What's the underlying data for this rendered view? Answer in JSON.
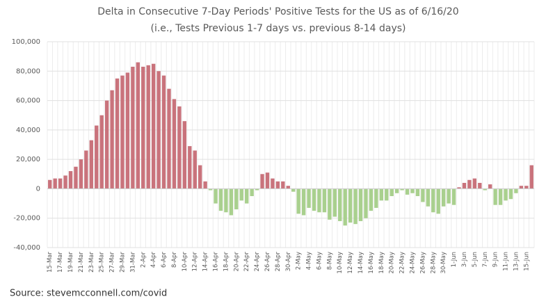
{
  "chart_data": {
    "type": "bar",
    "title": "Delta in Consecutive 7-Day Periods' Positive Tests for the US as of 6/16/20",
    "subtitle": "(i.e., Tests Previous 1-7 days vs. previous 8-14 days)",
    "source": "Source: stevemcconnell.com/covid",
    "categories": [
      "15-Mar",
      null,
      "17-Mar",
      null,
      "19-Mar",
      null,
      "21-Mar",
      null,
      "23-Mar",
      null,
      "25-Mar",
      null,
      "27-Mar",
      null,
      "29-Mar",
      null,
      "31-Mar",
      null,
      "2-Apr",
      null,
      "4-Apr",
      null,
      "6-Apr",
      null,
      "8-Apr",
      null,
      "10-Apr",
      null,
      "12-Apr",
      null,
      "14-Apr",
      null,
      "16-Apr",
      null,
      "18-Apr",
      null,
      "20-Apr",
      null,
      "22-Apr",
      null,
      "24-Apr",
      null,
      "26-Apr",
      null,
      "28-Apr",
      null,
      "30-Apr",
      null,
      "2-May",
      null,
      "4-May",
      null,
      "6-May",
      null,
      "8-May",
      null,
      "10-May",
      null,
      "12-May",
      null,
      "14-May",
      null,
      "16-May",
      null,
      "18-May",
      null,
      "20-May",
      null,
      "22-May",
      null,
      "24-May",
      null,
      "26-May",
      null,
      "28-May",
      null,
      "30-May",
      null,
      "1-Jun",
      null,
      "3-Jun",
      null,
      "5-Jun",
      null,
      "7-Jun",
      null,
      "9-Jun",
      null,
      "11-Jun",
      null,
      "13-Jun",
      null,
      "15-Jun",
      null
    ],
    "values": [
      6000,
      7000,
      7000,
      9000,
      12000,
      15000,
      20000,
      26000,
      33000,
      43000,
      50000,
      60000,
      67000,
      75000,
      77000,
      79000,
      83000,
      86000,
      83000,
      84000,
      85000,
      80000,
      77000,
      68000,
      61000,
      56000,
      46000,
      29000,
      26000,
      16000,
      5000,
      -1000,
      -10000,
      -15000,
      -16000,
      -18000,
      -14000,
      -8000,
      -10000,
      -5000,
      -1000,
      10000,
      11000,
      7000,
      5000,
      5000,
      2000,
      -2000,
      -17000,
      -18000,
      -13000,
      -15000,
      -16000,
      -16000,
      -21000,
      -19000,
      -22000,
      -25000,
      -23000,
      -24000,
      -22000,
      -20000,
      -15000,
      -13000,
      -8000,
      -8000,
      -5000,
      -3000,
      -1000,
      -4000,
      -3000,
      -5000,
      -9000,
      -12000,
      -16000,
      -17000,
      -12000,
      -10000,
      -11000,
      1000,
      4000,
      6000,
      7000,
      4000,
      -1000,
      3000,
      -11000,
      -11000,
      -8000,
      -7000,
      -3000,
      2000,
      2000,
      16000
    ],
    "positive_color": "#c9737c",
    "negative_color": "#a9d08e",
    "ylim": [
      -40000,
      100000
    ],
    "yticks": [
      {
        "value": -40000,
        "label": "-40,000"
      },
      {
        "value": -20000,
        "label": "-20,000"
      },
      0,
      {
        "value": 20000,
        "label": "20,000"
      },
      {
        "value": 40000,
        "label": "40,000"
      },
      {
        "value": 60000,
        "label": "60,000"
      },
      {
        "value": 80000,
        "label": "80,000"
      },
      {
        "value": 100000,
        "label": "100,000"
      }
    ],
    "grid": true
  }
}
